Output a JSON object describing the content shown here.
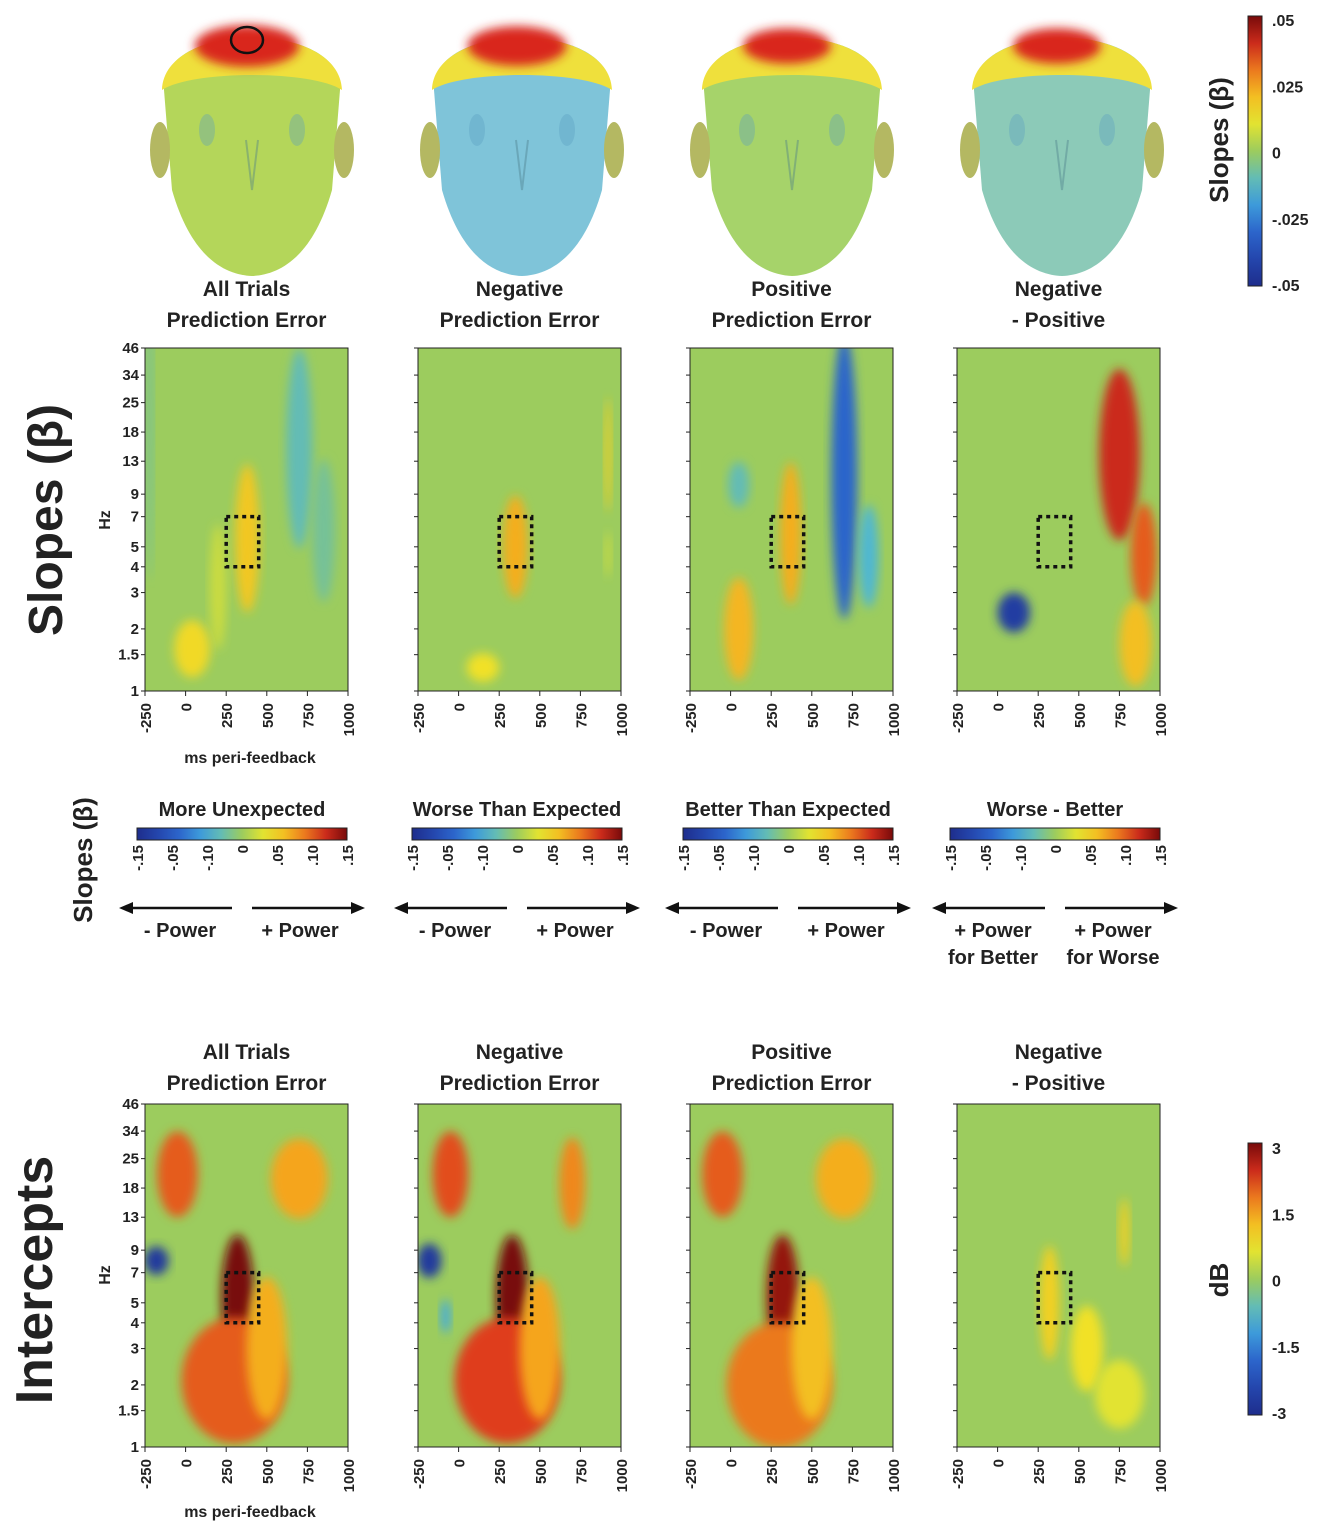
{
  "colors": {
    "field_green": "#9ccc5e",
    "heat_positive": "#d9281e",
    "heat_negative": "#3aa0d8",
    "frame": "#222222"
  },
  "scalp_colorbar": {
    "label": "Slopes (β)",
    "ticks": [
      ".05",
      ".025",
      "0",
      "-.025",
      "-.05"
    ]
  },
  "slopes_section": {
    "row_label": "Slopes (β)",
    "titles": [
      [
        "All Trials",
        "Prediction Error"
      ],
      [
        "Negative",
        "Prediction Error"
      ],
      [
        "Positive",
        "Prediction Error"
      ],
      [
        "Negative",
        "-  Positive"
      ]
    ],
    "xlabel": "ms peri-feedback",
    "ylabel": "Hz"
  },
  "colorbar_section": {
    "row_label": "Slopes (β)",
    "bars": [
      {
        "title": "More Unexpected",
        "left": "- Power",
        "right": "+ Power"
      },
      {
        "title": "Worse Than Expected",
        "left": "- Power",
        "right": "+ Power"
      },
      {
        "title": "Better Than Expected",
        "left": "- Power",
        "right": "+ Power"
      },
      {
        "title": "Worse - Better",
        "left": "+ Power\nfor Better",
        "right": "+ Power\nfor Worse"
      }
    ],
    "ticks": [
      "-.15",
      "-.05",
      "-.10",
      "0",
      ".05",
      ".10",
      ".15"
    ]
  },
  "intercepts_section": {
    "row_label": "Intercepts",
    "titles": [
      [
        "All Trials",
        "Prediction Error"
      ],
      [
        "Negative",
        "Prediction Error"
      ],
      [
        "Positive",
        "Prediction Error"
      ],
      [
        "Negative",
        "-  Positive"
      ]
    ],
    "xlabel": "ms peri-feedback",
    "ylabel": "Hz",
    "colorbar": {
      "label": "dB",
      "ticks": [
        "3",
        "1.5",
        "0",
        "-1.5",
        "-3"
      ]
    }
  },
  "chart_data": {
    "type": "heatmap",
    "x_ticks": [
      "-250",
      "0",
      "250",
      "500",
      "750",
      "1000"
    ],
    "x_range": [
      -250,
      1000
    ],
    "y_ticks": [
      "46",
      "34",
      "25",
      "18",
      "13",
      "9",
      "7",
      "5",
      "4",
      "3",
      "2",
      "1.5",
      "1"
    ],
    "y_scale": "log",
    "roi": {
      "ms": [
        250,
        450
      ],
      "hz": [
        4,
        7
      ]
    },
    "slopes": [
      {
        "blobs": [
          {
            "ms": 380,
            "hz": 5.5,
            "w": 150,
            "h": 0.26,
            "v": 0.055
          },
          {
            "ms": 200,
            "hz": 3.2,
            "w": 100,
            "h": 0.22,
            "v": 0.02
          },
          {
            "ms": 40,
            "hz": 1.6,
            "w": 220,
            "h": 0.1,
            "v": 0.045
          },
          {
            "ms": 700,
            "hz": 15,
            "w": 160,
            "h": 0.35,
            "v": -0.03
          },
          {
            "ms": 850,
            "hz": 6,
            "w": 140,
            "h": 0.25,
            "v": -0.02
          },
          {
            "ms": -220,
            "hz": 20,
            "w": 40,
            "h": 0.55,
            "v": -0.02
          }
        ]
      },
      {
        "blobs": [
          {
            "ms": 350,
            "hz": 5.0,
            "w": 150,
            "h": 0.18,
            "v": 0.07
          },
          {
            "ms": 150,
            "hz": 1.3,
            "w": 200,
            "h": 0.05,
            "v": 0.04
          },
          {
            "ms": 920,
            "hz": 14,
            "w": 40,
            "h": 0.2,
            "v": 0.05
          },
          {
            "ms": 920,
            "hz": 4.6,
            "w": 40,
            "h": 0.08,
            "v": 0.02
          }
        ]
      },
      {
        "blobs": [
          {
            "ms": 370,
            "hz": 5.8,
            "w": 130,
            "h": 0.25,
            "v": 0.07
          },
          {
            "ms": 50,
            "hz": 2.0,
            "w": 180,
            "h": 0.18,
            "v": 0.065
          },
          {
            "ms": 700,
            "hz": 11,
            "w": 160,
            "h": 0.5,
            "v": -0.09
          },
          {
            "ms": 850,
            "hz": 4.5,
            "w": 120,
            "h": 0.18,
            "v": -0.04
          },
          {
            "ms": 50,
            "hz": 10,
            "w": 130,
            "h": 0.08,
            "v": -0.03
          }
        ]
      },
      {
        "blobs": [
          {
            "ms": 750,
            "hz": 14,
            "w": 250,
            "h": 0.3,
            "v": 0.12
          },
          {
            "ms": 900,
            "hz": 4.6,
            "w": 160,
            "h": 0.18,
            "v": 0.1
          },
          {
            "ms": 100,
            "hz": 2.4,
            "w": 200,
            "h": 0.07,
            "v": -0.13
          },
          {
            "ms": 850,
            "hz": 1.7,
            "w": 200,
            "h": 0.15,
            "v": 0.06
          }
        ]
      }
    ],
    "intercepts": [
      {
        "blobs": [
          {
            "ms": 320,
            "hz": 5.3,
            "w": 200,
            "h": 0.22,
            "v": 3.0
          },
          {
            "ms": 300,
            "hz": 2.1,
            "w": 650,
            "h": 0.22,
            "v": 2.0
          },
          {
            "ms": 500,
            "hz": 3.0,
            "w": 250,
            "h": 0.25,
            "v": 1.4
          },
          {
            "ms": -50,
            "hz": 21,
            "w": 250,
            "h": 0.15,
            "v": 2.0
          },
          {
            "ms": 700,
            "hz": 20,
            "w": 350,
            "h": 0.14,
            "v": 1.5
          },
          {
            "ms": -180,
            "hz": 8.0,
            "w": 150,
            "h": 0.05,
            "v": -2.7
          }
        ]
      },
      {
        "blobs": [
          {
            "ms": 330,
            "hz": 5.3,
            "w": 200,
            "h": 0.22,
            "v": 3.1
          },
          {
            "ms": 300,
            "hz": 2.1,
            "w": 650,
            "h": 0.22,
            "v": 2.2
          },
          {
            "ms": 500,
            "hz": 3.0,
            "w": 250,
            "h": 0.25,
            "v": 1.5
          },
          {
            "ms": -50,
            "hz": 21,
            "w": 220,
            "h": 0.15,
            "v": 2.1
          },
          {
            "ms": 700,
            "hz": 19,
            "w": 160,
            "h": 0.16,
            "v": 1.7
          },
          {
            "ms": -180,
            "hz": 8.0,
            "w": 150,
            "h": 0.06,
            "v": -2.7
          },
          {
            "ms": -80,
            "hz": 4.3,
            "w": 60,
            "h": 0.06,
            "v": -1.0
          }
        ]
      },
      {
        "blobs": [
          {
            "ms": 320,
            "hz": 5.3,
            "w": 200,
            "h": 0.22,
            "v": 2.8
          },
          {
            "ms": 300,
            "hz": 2.0,
            "w": 650,
            "h": 0.22,
            "v": 1.8
          },
          {
            "ms": 500,
            "hz": 3.0,
            "w": 250,
            "h": 0.25,
            "v": 1.2
          },
          {
            "ms": -50,
            "hz": 21,
            "w": 250,
            "h": 0.15,
            "v": 2.0
          },
          {
            "ms": 700,
            "hz": 20,
            "w": 350,
            "h": 0.14,
            "v": 1.4
          }
        ]
      },
      {
        "blobs": [
          {
            "ms": 320,
            "hz": 5.0,
            "w": 120,
            "h": 0.2,
            "v": 1.0
          },
          {
            "ms": 550,
            "hz": 3.0,
            "w": 200,
            "h": 0.15,
            "v": 0.8
          },
          {
            "ms": 750,
            "hz": 1.8,
            "w": 300,
            "h": 0.12,
            "v": 0.6
          },
          {
            "ms": 780,
            "hz": 11,
            "w": 60,
            "h": 0.12,
            "v": 1.0
          }
        ]
      }
    ]
  }
}
